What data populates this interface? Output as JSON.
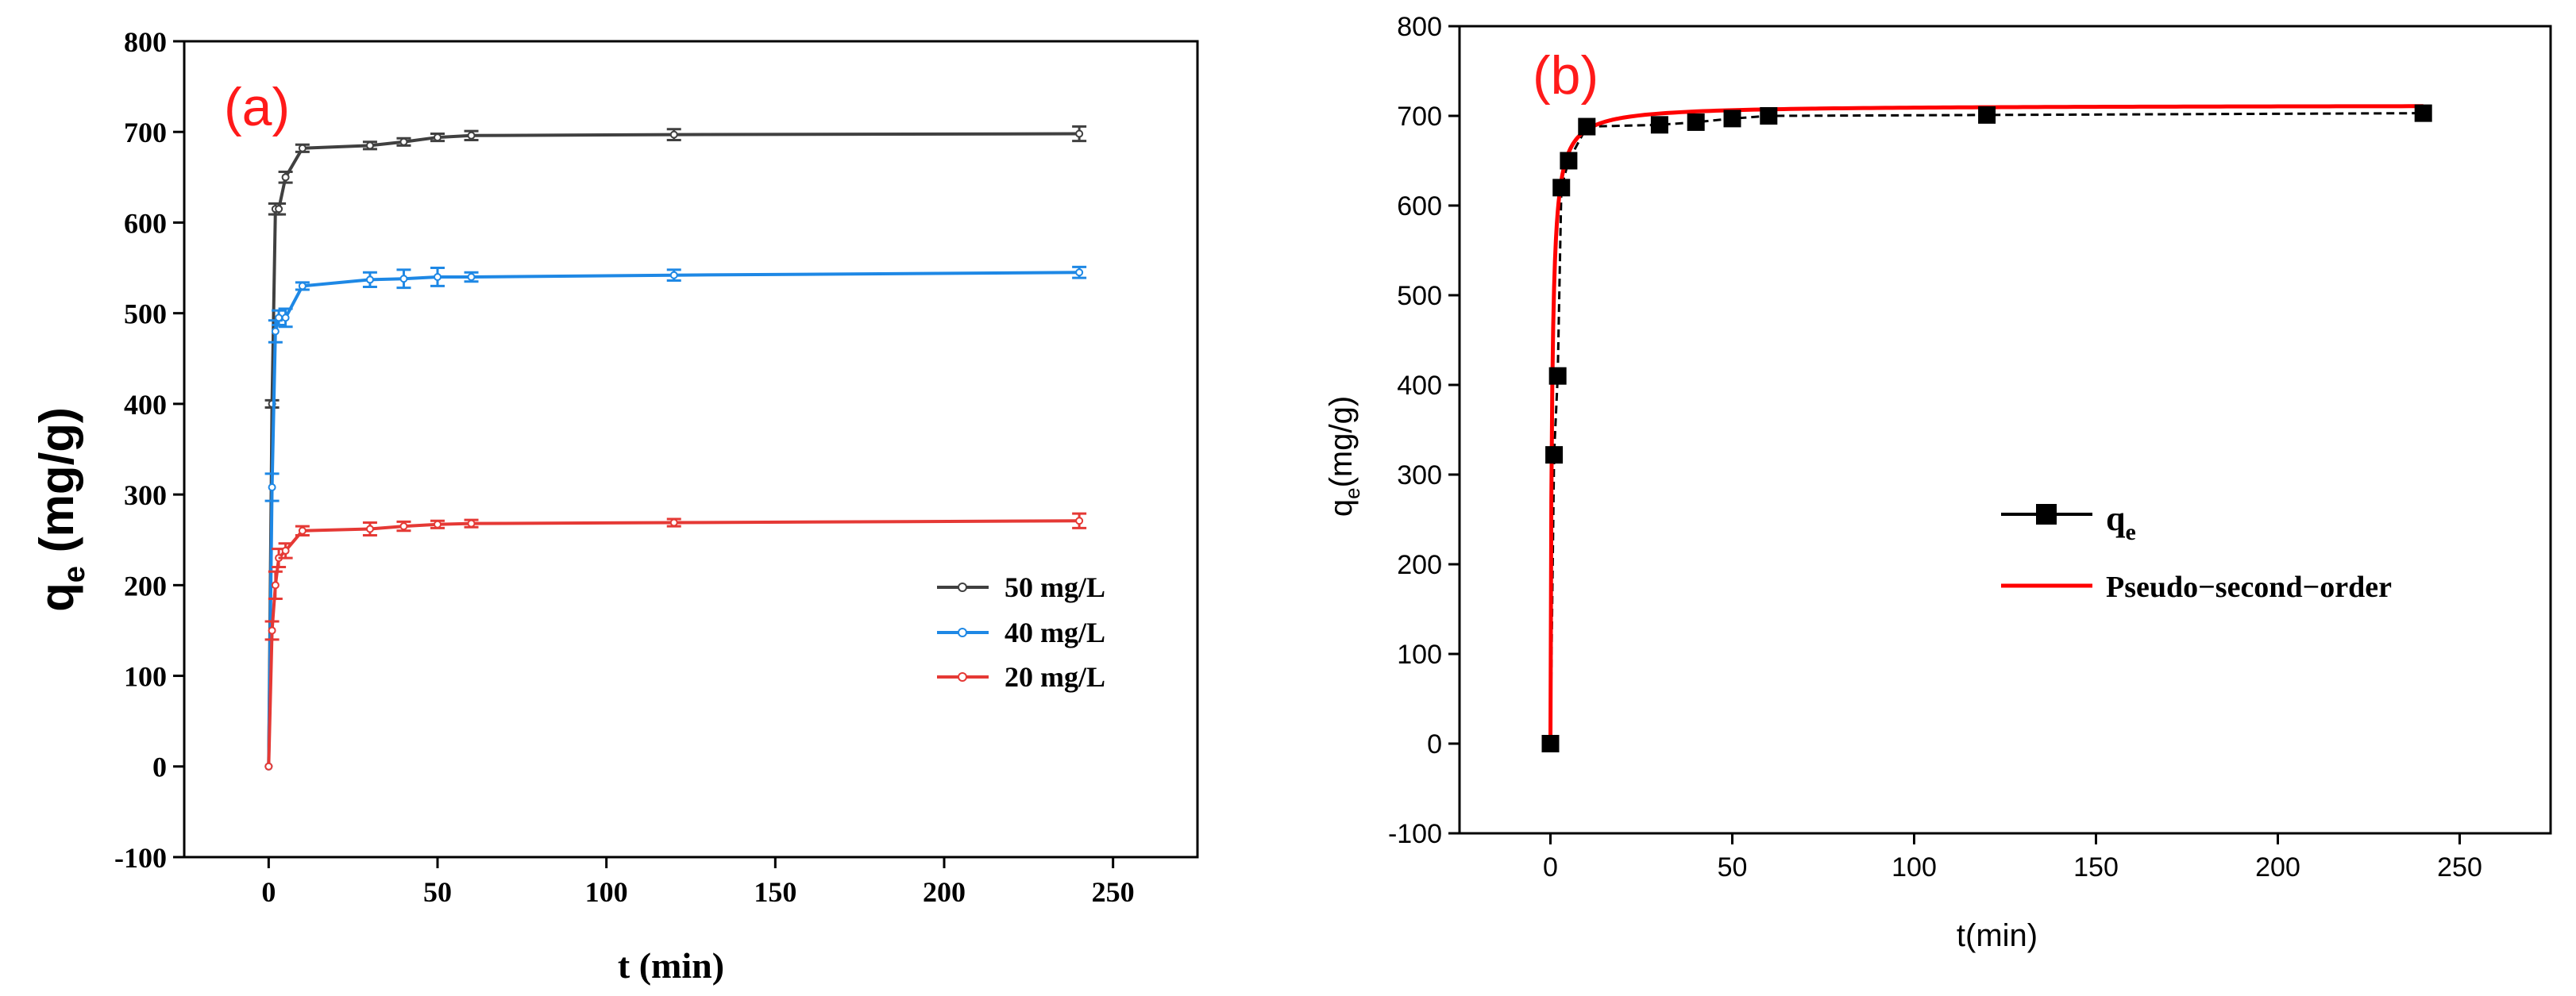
{
  "chart_data": [
    {
      "id": "a",
      "type": "line",
      "panel_label": "(a)",
      "xlabel": "t (min)",
      "ylabel_main": "q",
      "ylabel_sub": "e",
      "ylabel_unit": " (mg/g)",
      "xlim": [
        -25,
        275
      ],
      "ylim": [
        -100,
        800
      ],
      "xticks": [
        0,
        50,
        100,
        150,
        200,
        250
      ],
      "yticks": [
        -100,
        0,
        100,
        200,
        300,
        400,
        500,
        600,
        700,
        800
      ],
      "legend_position": "lower-right",
      "series": [
        {
          "name": "50 mg/L",
          "color": "#404040",
          "x": [
            0,
            1,
            2,
            3,
            5,
            10,
            30,
            40,
            50,
            60,
            120,
            240
          ],
          "y": [
            0,
            400,
            615,
            615,
            650,
            682,
            685,
            689,
            694,
            696,
            697,
            698
          ],
          "err": [
            0,
            4,
            6,
            6,
            6,
            4,
            4,
            4,
            4,
            5,
            6,
            8
          ]
        },
        {
          "name": "40 mg/L",
          "color": "#1e88e5",
          "x": [
            0,
            1,
            2,
            3,
            5,
            10,
            30,
            40,
            50,
            60,
            120,
            240
          ],
          "y": [
            0,
            308,
            480,
            495,
            495,
            530,
            537,
            538,
            540,
            540,
            542,
            545
          ],
          "err": [
            0,
            15,
            12,
            8,
            10,
            4,
            8,
            10,
            10,
            5,
            6,
            6
          ]
        },
        {
          "name": "20 mg/L",
          "color": "#e53935",
          "x": [
            0,
            1,
            2,
            3,
            5,
            10,
            30,
            40,
            50,
            60,
            120,
            240
          ],
          "y": [
            0,
            150,
            200,
            230,
            238,
            260,
            262,
            265,
            267,
            268,
            269,
            271
          ],
          "err": [
            0,
            10,
            15,
            10,
            8,
            5,
            7,
            5,
            4,
            4,
            4,
            8
          ]
        }
      ]
    },
    {
      "id": "b",
      "type": "scatter",
      "panel_label": "(b)",
      "xlabel": "t(min)",
      "ylabel_main": "q",
      "ylabel_sub": "e",
      "ylabel_unit": "(mg/g)",
      "xlim": [
        -25,
        275
      ],
      "ylim": [
        -100,
        800
      ],
      "xticks": [
        0,
        50,
        100,
        150,
        200,
        250
      ],
      "yticks": [
        -100,
        0,
        100,
        200,
        300,
        400,
        500,
        600,
        700,
        800
      ],
      "legend_position": "center-right",
      "series": [
        {
          "name_main": "q",
          "name_sub": "e",
          "color": "#000000",
          "x": [
            0,
            1,
            2,
            3,
            5,
            10,
            30,
            40,
            50,
            60,
            120,
            240
          ],
          "y": [
            0,
            322,
            410,
            620,
            650,
            688,
            690,
            693,
            697,
            700,
            701,
            703
          ]
        },
        {
          "name": "Pseudo−second−order",
          "color": "#ff0000",
          "model": {
            "qe": 712,
            "k": 0.0035
          }
        }
      ]
    }
  ]
}
